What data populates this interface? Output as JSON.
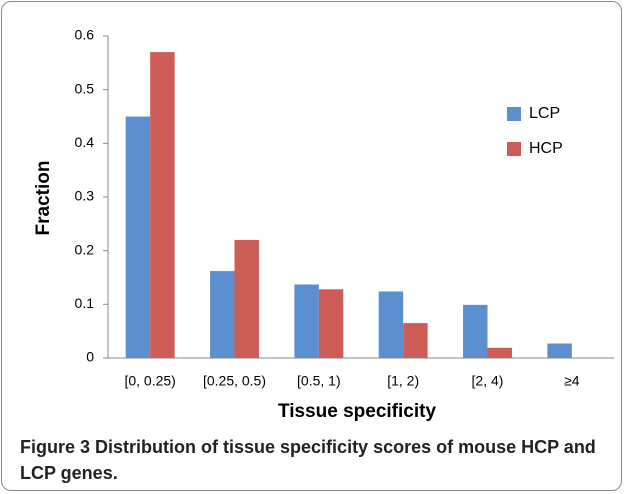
{
  "chart_data": {
    "type": "bar",
    "x_label": "Tissue specificity",
    "y_label": "Fraction",
    "categories": [
      "[0, 0.25)",
      "[0.25, 0.5)",
      "[0.5, 1)",
      "[1, 2)",
      "[2, 4)",
      "≥4"
    ],
    "series": [
      {
        "name": "LCP",
        "color": "#5b8fd0",
        "values": [
          0.45,
          0.162,
          0.137,
          0.124,
          0.099,
          0.027
        ]
      },
      {
        "name": "HCP",
        "color": "#cd5c57",
        "values": [
          0.57,
          0.22,
          0.128,
          0.065,
          0.019,
          0
        ]
      }
    ],
    "ylim": [
      0,
      0.6
    ],
    "yticks": [
      0,
      0.1,
      0.2,
      0.3,
      0.4,
      0.5,
      0.6
    ],
    "grid": false,
    "legend": "upper right"
  },
  "caption": {
    "label": "Figure 3",
    "text": "Distribution of tissue specificity scores of mouse HCP and LCP genes."
  }
}
